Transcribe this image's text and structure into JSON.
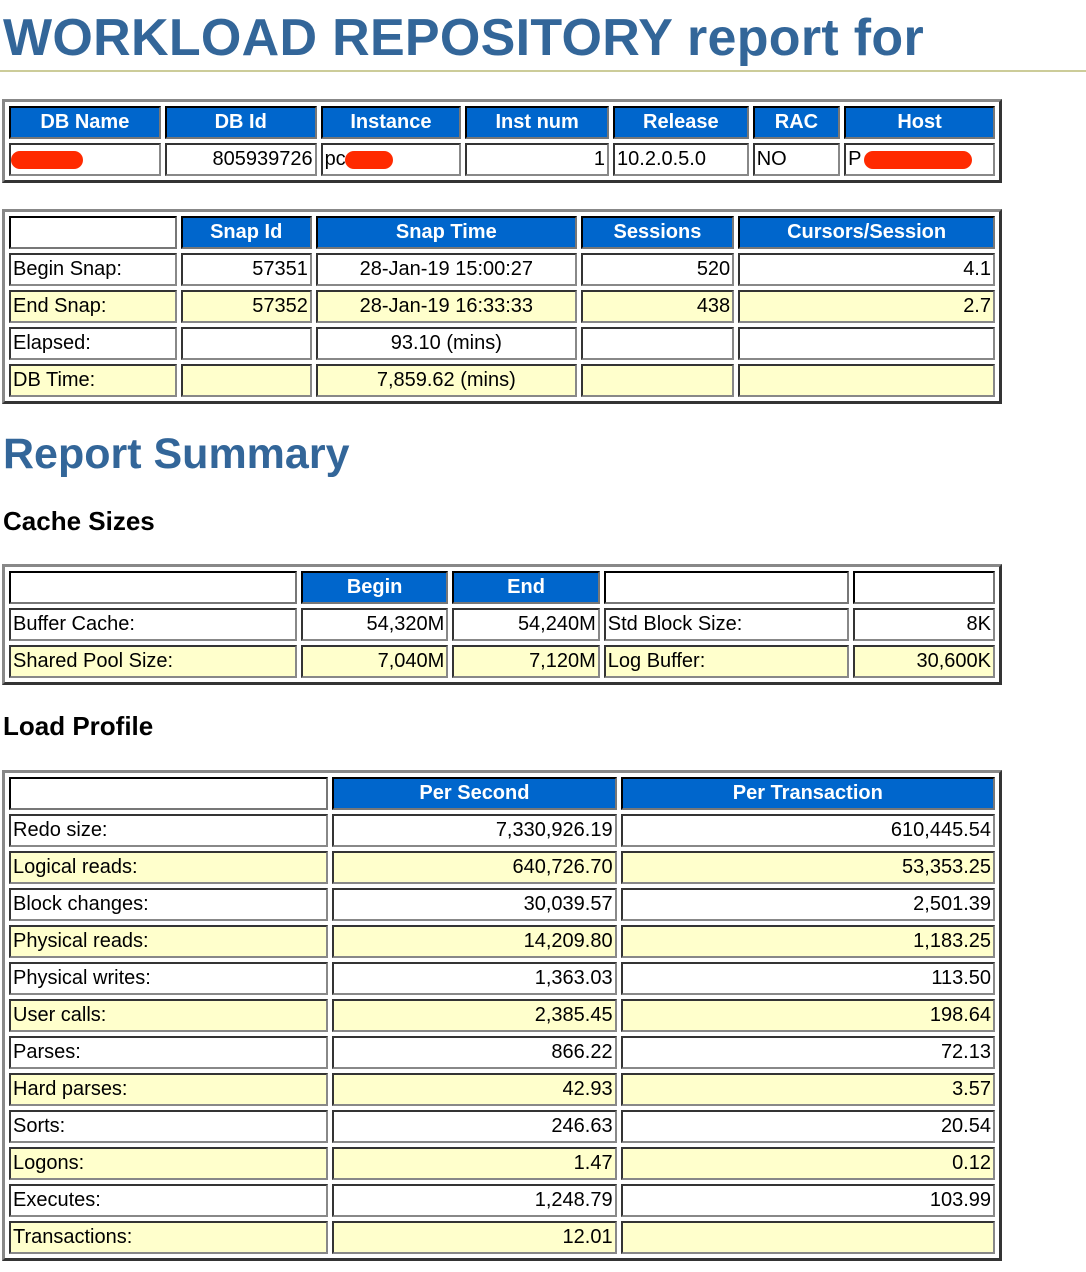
{
  "title": "WORKLOAD REPOSITORY report for",
  "db_info": {
    "headers": [
      "DB Name",
      "DB Id",
      "Instance",
      "Inst num",
      "Release",
      "RAC",
      "Host"
    ],
    "row": {
      "db_name": "",
      "db_id": "805939726",
      "instance": "pc",
      "inst_num": "1",
      "release": "10.2.0.5.0",
      "rac": "NO",
      "host": "P"
    }
  },
  "snap_info": {
    "headers": [
      "",
      "Snap Id",
      "Snap Time",
      "Sessions",
      "Cursors/Session"
    ],
    "rows": [
      {
        "label": "Begin Snap:",
        "snap_id": "57351",
        "snap_time": "28-Jan-19 15:00:27",
        "sessions": "520",
        "cursors": "4.1"
      },
      {
        "label": "End Snap:",
        "snap_id": "57352",
        "snap_time": "28-Jan-19 16:33:33",
        "sessions": "438",
        "cursors": "2.7"
      },
      {
        "label": "Elapsed:",
        "snap_id": "",
        "snap_time": "93.10 (mins)",
        "sessions": "",
        "cursors": ""
      },
      {
        "label": "DB Time:",
        "snap_id": "",
        "snap_time": "7,859.62 (mins)",
        "sessions": "",
        "cursors": ""
      }
    ]
  },
  "report_summary": "Report Summary",
  "cache_sizes": {
    "heading": "Cache Sizes",
    "headers": [
      "",
      "Begin",
      "End",
      "",
      ""
    ],
    "rows": [
      {
        "label": "Buffer Cache:",
        "begin": "54,320M",
        "end": "54,240M",
        "label2": "Std Block Size:",
        "value2": "8K"
      },
      {
        "label": "Shared Pool Size:",
        "begin": "7,040M",
        "end": "7,120M",
        "label2": "Log Buffer:",
        "value2": "30,600K"
      }
    ]
  },
  "load_profile": {
    "heading": "Load Profile",
    "headers": [
      "",
      "Per Second",
      "Per Transaction"
    ],
    "rows": [
      {
        "label": "Redo size:",
        "per_sec": "7,330,926.19",
        "per_txn": "610,445.54"
      },
      {
        "label": "Logical reads:",
        "per_sec": "640,726.70",
        "per_txn": "53,353.25"
      },
      {
        "label": "Block changes:",
        "per_sec": "30,039.57",
        "per_txn": "2,501.39"
      },
      {
        "label": "Physical reads:",
        "per_sec": "14,209.80",
        "per_txn": "1,183.25"
      },
      {
        "label": "Physical writes:",
        "per_sec": "1,363.03",
        "per_txn": "113.50"
      },
      {
        "label": "User calls:",
        "per_sec": "2,385.45",
        "per_txn": "198.64"
      },
      {
        "label": "Parses:",
        "per_sec": "866.22",
        "per_txn": "72.13"
      },
      {
        "label": "Hard parses:",
        "per_sec": "42.93",
        "per_txn": "3.57"
      },
      {
        "label": "Sorts:",
        "per_sec": "246.63",
        "per_txn": "20.54"
      },
      {
        "label": "Logons:",
        "per_sec": "1.47",
        "per_txn": "0.12"
      },
      {
        "label": "Executes:",
        "per_sec": "1,248.79",
        "per_txn": "103.99"
      },
      {
        "label": "Transactions:",
        "per_sec": "12.01",
        "per_txn": ""
      }
    ]
  },
  "colors": {
    "header_bg": "#0066cc",
    "alt_row": "#ffffcc",
    "heading": "#336699",
    "redaction": "#ff2a00"
  }
}
